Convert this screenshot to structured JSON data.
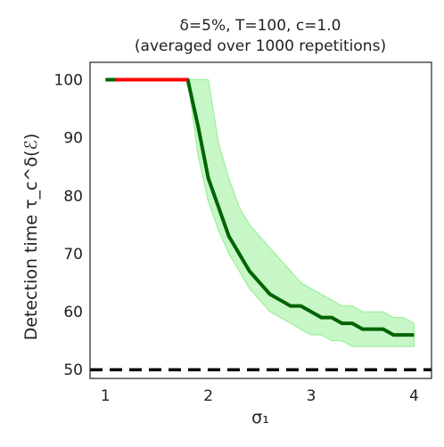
{
  "chart_data": {
    "type": "line",
    "title_line1": "δ=5%, T=100, c=1.0",
    "title_line2": "(averaged over 1000 repetitions)",
    "xlabel": "σ₁",
    "ylabel": "Detection time τ_c^δ(ℰ)",
    "xlim": [
      0.85,
      4.17
    ],
    "ylim": [
      48.5,
      103.0
    ],
    "xticks": [
      1,
      2,
      3,
      4
    ],
    "yticks": [
      50,
      60,
      70,
      80,
      90,
      100
    ],
    "grid": false,
    "legend": "none",
    "colors": {
      "mean_line": "#006400",
      "band_fill": "#90ee90",
      "censored_segment": "#ff0000",
      "reference_line": "#000000"
    },
    "series": [
      {
        "x": [
          1.0,
          1.1,
          1.2,
          1.3,
          1.4,
          1.5,
          1.6,
          1.7,
          1.8,
          1.9,
          2.0,
          2.1,
          2.2,
          2.3,
          2.4,
          2.5,
          2.6,
          2.7,
          2.8,
          2.9,
          3.0,
          3.1,
          3.2,
          3.3,
          3.4,
          3.5,
          3.6,
          3.7,
          3.8,
          3.9,
          4.0
        ],
        "y": [
          100,
          100,
          100,
          100,
          100,
          100,
          100,
          100,
          100,
          92,
          83,
          78,
          73,
          70,
          67,
          65,
          63,
          62,
          61,
          61,
          60,
          59,
          59,
          58,
          58,
          57,
          57,
          57,
          56,
          56,
          56
        ],
        "lower": [
          100,
          100,
          100,
          100,
          100,
          100,
          100,
          100,
          100,
          87,
          79,
          74,
          70,
          67,
          64,
          62,
          60,
          59,
          58,
          57,
          56,
          56,
          55,
          55,
          54,
          54,
          54,
          54,
          54,
          54,
          54
        ],
        "upper": [
          100,
          100,
          100,
          100,
          100,
          100,
          100,
          100,
          100,
          100,
          100,
          89,
          83,
          78,
          75,
          73,
          71,
          69,
          67,
          65,
          64,
          63,
          62,
          61,
          61,
          60,
          60,
          60,
          59,
          59,
          58
        ]
      },
      {
        "x": [
          1.0,
          1.1,
          1.2,
          1.3,
          1.4,
          1.5,
          1.6,
          1.7,
          1.8
        ],
        "y": [
          100,
          100,
          100,
          100,
          100,
          100,
          100,
          100,
          100
        ]
      },
      {
        "x": [
          0.85,
          4.17
        ],
        "y": [
          50,
          50
        ]
      }
    ]
  }
}
